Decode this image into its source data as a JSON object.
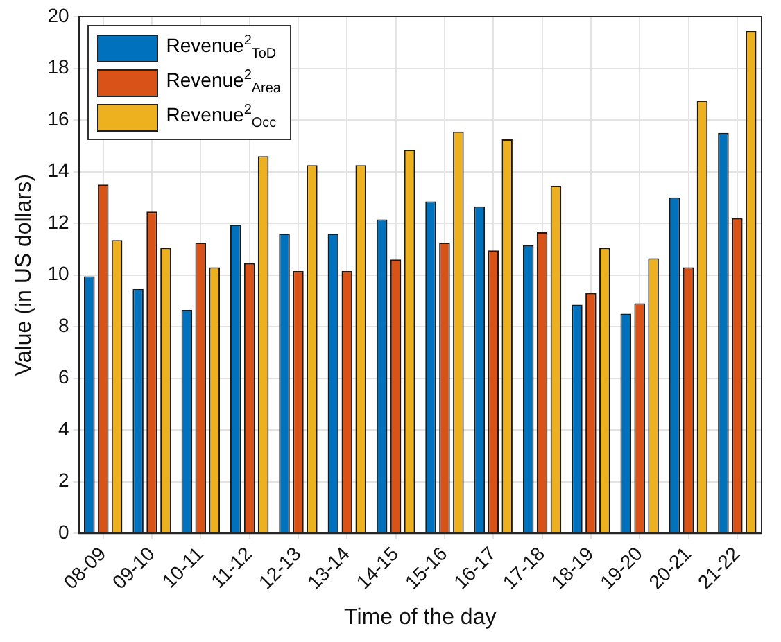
{
  "chart_data": {
    "type": "bar",
    "xlabel": "Time of the day",
    "ylabel": "Value (in US dollars)",
    "categories": [
      "08-09",
      "09-10",
      "10-11",
      "11-12",
      "12-13",
      "13-14",
      "14-15",
      "15-16",
      "16-17",
      "17-18",
      "18-19",
      "19-20",
      "20-21",
      "21-22"
    ],
    "series": [
      {
        "name": "Revenue$^{2}$$_{ToD}$",
        "color": "#0072bd",
        "values": [
          9.95,
          9.45,
          8.65,
          11.95,
          11.6,
          11.6,
          12.15,
          12.85,
          12.65,
          11.15,
          8.85,
          8.5,
          13.0,
          15.5
        ]
      },
      {
        "name": "Revenue$^{2}$$_{Area}$",
        "color": "#d95319",
        "values": [
          13.5,
          12.45,
          11.25,
          10.45,
          10.15,
          10.15,
          10.6,
          11.25,
          10.95,
          11.65,
          9.3,
          8.9,
          10.3,
          12.2
        ]
      },
      {
        "name": "Revenue$^{2}$$_{Occ}$",
        "color": "#edb120",
        "values": [
          11.35,
          11.05,
          10.3,
          14.6,
          14.25,
          14.25,
          14.85,
          15.55,
          15.25,
          13.45,
          11.05,
          10.65,
          16.75,
          19.45
        ]
      }
    ],
    "ylim": [
      0,
      20
    ],
    "yticks": [
      0,
      2,
      4,
      6,
      8,
      10,
      12,
      14,
      16,
      18,
      20
    ],
    "grid": true,
    "legend": "top left"
  }
}
